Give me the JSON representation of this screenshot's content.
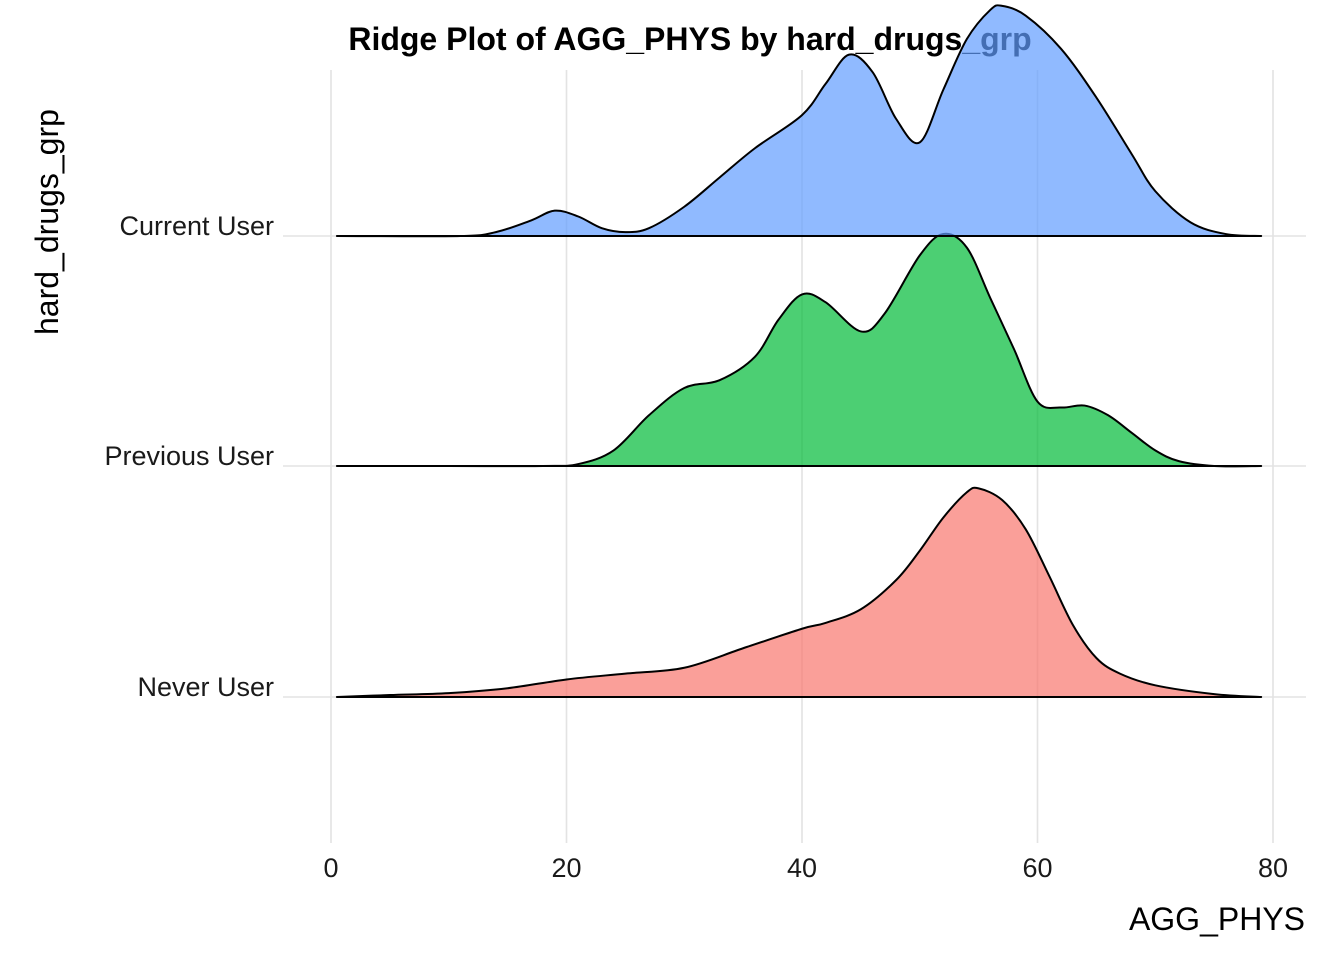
{
  "chart_data": {
    "type": "area",
    "subtype": "ridgeline",
    "title": "Ridge Plot of AGG_PHYS by hard_drugs_grp",
    "xlabel": "AGG_PHYS",
    "ylabel": "hard_drugs_grp",
    "xlim": [
      0,
      80
    ],
    "x_ticks": [
      0,
      20,
      40,
      60,
      80
    ],
    "x_tick_labels": [
      "0",
      "20",
      "40",
      "60",
      "80"
    ],
    "grid": true,
    "legend": "none",
    "series": [
      {
        "name": "Never User",
        "color": "#F8766D",
        "fill_opacity": 0.7,
        "x": [
          0.5,
          5,
          10,
          15,
          20,
          25,
          30,
          35,
          40,
          42,
          45,
          48,
          50,
          52,
          54,
          55,
          57,
          59,
          61,
          63,
          65,
          67,
          70,
          75,
          79
        ],
        "density": [
          0.0,
          0.01,
          0.02,
          0.045,
          0.09,
          0.12,
          0.15,
          0.25,
          0.35,
          0.38,
          0.45,
          0.6,
          0.75,
          0.92,
          1.05,
          1.07,
          1.01,
          0.86,
          0.62,
          0.37,
          0.2,
          0.12,
          0.06,
          0.015,
          0.0
        ]
      },
      {
        "name": "Previous User",
        "color": "#00BA38",
        "fill_opacity": 0.7,
        "x": [
          0.5,
          10,
          18,
          21,
          24,
          27,
          30,
          33,
          36,
          38,
          40,
          42,
          45,
          47,
          50,
          52,
          54,
          56,
          58,
          60,
          62,
          64,
          66,
          68,
          70,
          72,
          75,
          79
        ],
        "density": [
          0.0,
          0.0,
          0.0,
          0.01,
          0.08,
          0.26,
          0.4,
          0.44,
          0.56,
          0.75,
          0.88,
          0.84,
          0.69,
          0.78,
          1.08,
          1.19,
          1.12,
          0.86,
          0.6,
          0.33,
          0.3,
          0.31,
          0.26,
          0.17,
          0.08,
          0.025,
          0.0,
          0.0
        ]
      },
      {
        "name": "Current User",
        "color": "#619CFF",
        "fill_opacity": 0.7,
        "x": [
          0.5,
          11,
          14,
          17,
          19,
          21,
          23,
          25,
          27,
          30,
          33,
          36,
          40,
          42,
          44,
          46,
          48,
          50,
          52,
          54,
          56,
          57,
          59,
          62,
          65,
          68,
          70,
          73,
          76,
          79
        ],
        "density": [
          0.0,
          0.0,
          0.02,
          0.08,
          0.13,
          0.1,
          0.04,
          0.02,
          0.04,
          0.15,
          0.3,
          0.45,
          0.62,
          0.78,
          0.93,
          0.84,
          0.6,
          0.48,
          0.75,
          1.01,
          1.16,
          1.18,
          1.13,
          0.96,
          0.71,
          0.42,
          0.23,
          0.07,
          0.01,
          0.0
        ]
      }
    ]
  }
}
